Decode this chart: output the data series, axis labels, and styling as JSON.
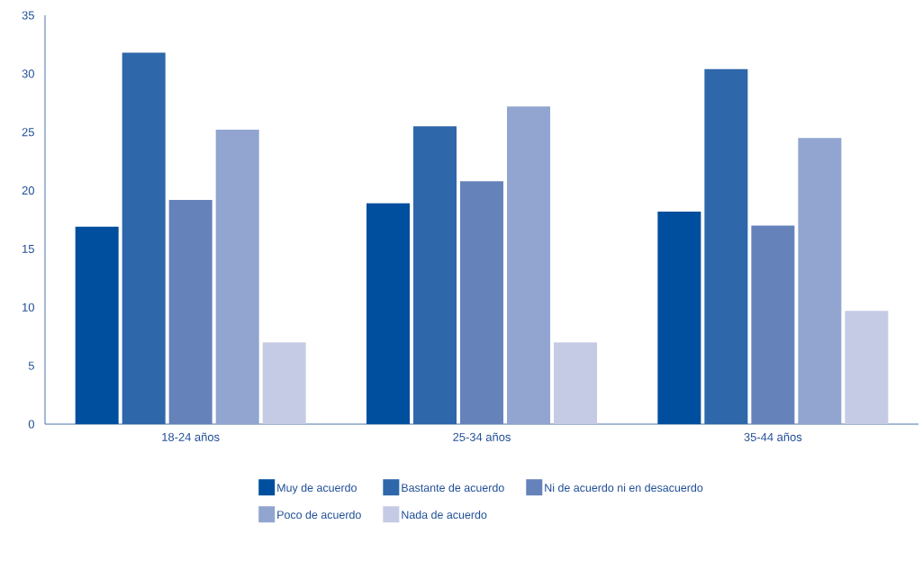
{
  "chart_data": {
    "type": "bar",
    "categories": [
      "18-24 años",
      "25-34 años",
      "35-44 años"
    ],
    "series": [
      {
        "name": "Muy de acuerdo",
        "color": "#004f9e",
        "values": [
          16.9,
          18.9,
          18.2
        ]
      },
      {
        "name": "Bastante de acuerdo",
        "color": "#2e67aa",
        "values": [
          31.8,
          25.5,
          30.4
        ]
      },
      {
        "name": "Ni de acuerdo ni en desacuerdo",
        "color": "#6682ba",
        "values": [
          19.2,
          20.8,
          17.0
        ]
      },
      {
        "name": "Poco de acuerdo",
        "color": "#91a5d0",
        "values": [
          25.2,
          27.2,
          24.5
        ]
      },
      {
        "name": "Nada de acuerdo",
        "color": "#c5cbe4",
        "values": [
          7.0,
          7.0,
          9.7
        ]
      }
    ],
    "ylim": [
      0,
      35
    ],
    "yticks": [
      0,
      5,
      10,
      15,
      20,
      25,
      30,
      35
    ],
    "grid": false,
    "legend": "bottom"
  }
}
